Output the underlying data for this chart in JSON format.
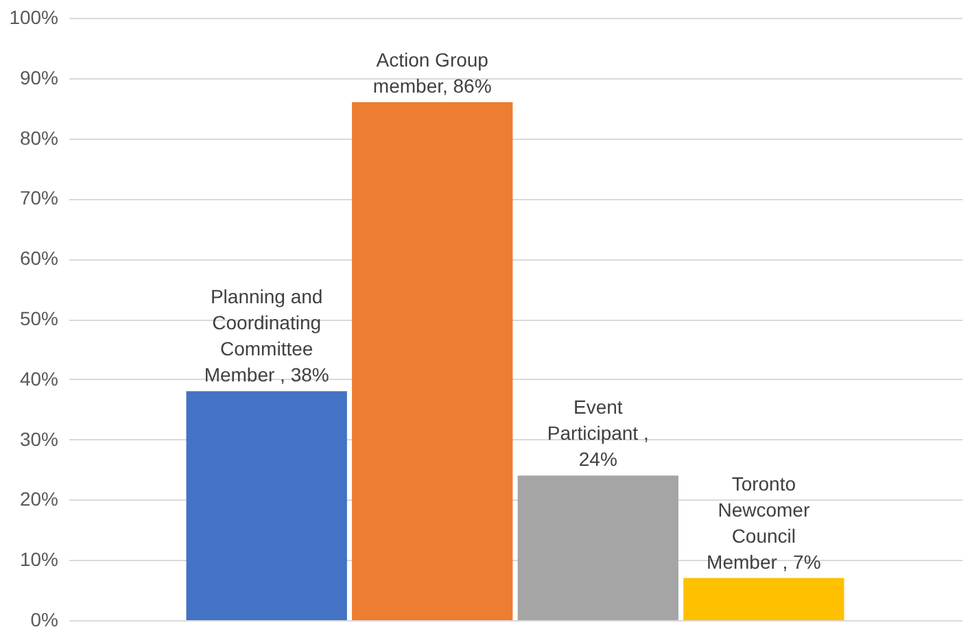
{
  "chart_data": {
    "type": "bar",
    "categories": [
      null,
      null,
      null,
      null
    ],
    "values": [
      38,
      86,
      24,
      7
    ],
    "colors": [
      "#4472c4",
      "#ed7d31",
      "#a5a5a5",
      "#ffc000"
    ],
    "value_labels": [
      "Planning and Coordinating Committee Member , 38%",
      "Action Group member, 86%",
      "Event Participant , 24%",
      "Toronto Newcomer Council Member , 7%"
    ],
    "ylim": [
      0,
      100
    ],
    "yticks": [
      {
        "value": 0,
        "label": "0%"
      },
      {
        "value": 10,
        "label": "10%"
      },
      {
        "value": 20,
        "label": "20%"
      },
      {
        "value": 30,
        "label": "30%"
      },
      {
        "value": 40,
        "label": "40%"
      },
      {
        "value": 50,
        "label": "50%"
      },
      {
        "value": 60,
        "label": "60%"
      },
      {
        "value": 70,
        "label": "70%"
      },
      {
        "value": 80,
        "label": "80%"
      },
      {
        "value": 90,
        "label": "90%"
      },
      {
        "value": 100,
        "label": "100%"
      }
    ],
    "grid": "y",
    "tick_labels": "y",
    "legend": false
  }
}
